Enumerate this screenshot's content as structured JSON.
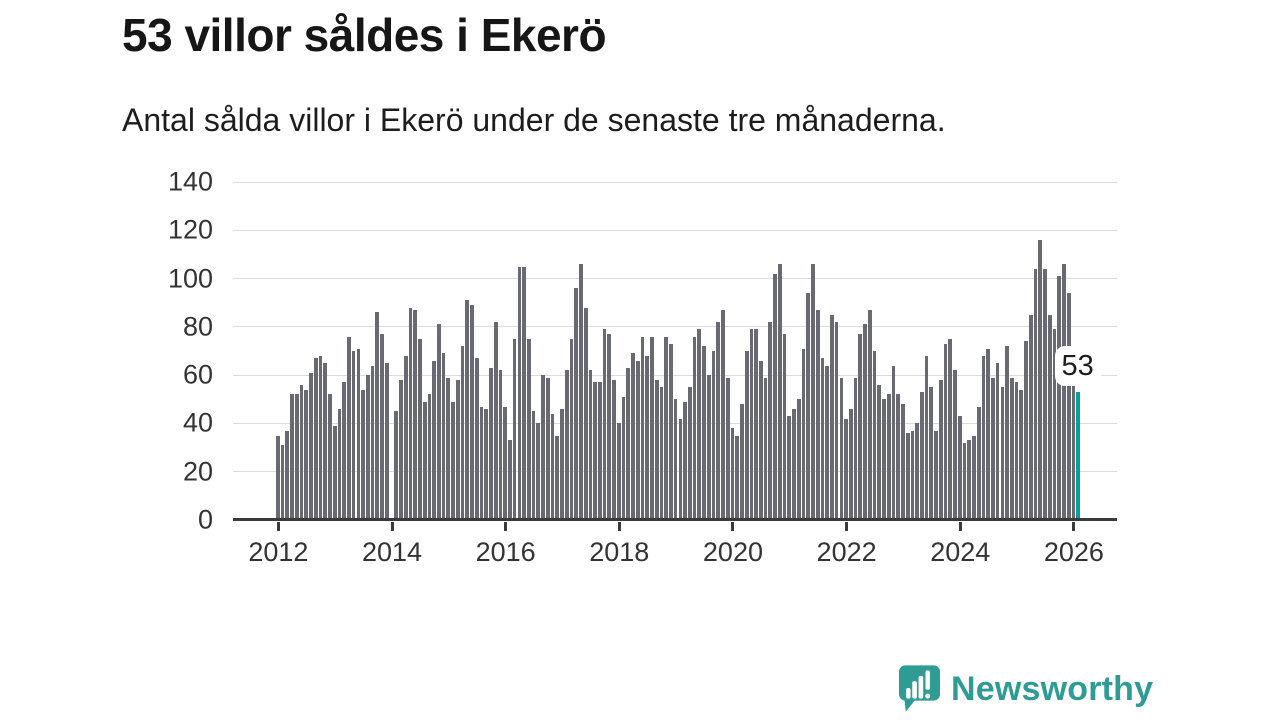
{
  "header": {
    "title": "53 villor såldes i Ekerö",
    "subtitle": "Antal sålda villor i Ekerö under de senaste tre månaderna."
  },
  "chart_data": {
    "type": "bar",
    "title": "53 villor såldes i Ekerö",
    "subtitle": "Antal sålda villor i Ekerö under de senaste tre månaderna.",
    "frequency": "monthly",
    "start_period": "2012-01",
    "values": [
      35,
      31,
      37,
      52,
      52,
      56,
      54,
      61,
      67,
      68,
      65,
      52,
      39,
      46,
      57,
      76,
      70,
      71,
      54,
      60,
      64,
      86,
      77,
      65,
      0,
      45,
      58,
      68,
      88,
      87,
      75,
      49,
      52,
      66,
      81,
      69,
      59,
      49,
      58,
      72,
      91,
      89,
      67,
      47,
      46,
      63,
      82,
      62,
      47,
      33,
      75,
      105,
      105,
      75,
      45,
      40,
      60,
      59,
      44,
      35,
      46,
      62,
      75,
      96,
      106,
      88,
      62,
      57,
      57,
      79,
      77,
      58,
      40,
      51,
      63,
      69,
      66,
      76,
      68,
      76,
      58,
      55,
      76,
      73,
      50,
      42,
      49,
      55,
      76,
      79,
      72,
      60,
      70,
      82,
      87,
      59,
      38,
      35,
      48,
      70,
      79,
      79,
      66,
      59,
      82,
      102,
      106,
      77,
      43,
      46,
      50,
      71,
      94,
      106,
      87,
      67,
      64,
      85,
      82,
      59,
      42,
      46,
      59,
      77,
      81,
      87,
      70,
      56,
      50,
      52,
      64,
      52,
      48,
      36,
      37,
      40,
      53,
      68,
      55,
      37,
      58,
      73,
      75,
      62,
      43,
      32,
      33,
      35,
      47,
      68,
      71,
      59,
      65,
      55,
      72,
      59,
      57,
      54,
      74,
      85,
      104,
      116,
      104,
      85,
      79,
      101,
      106,
      94,
      62,
      53
    ],
    "highlight": {
      "index": 169,
      "label": "53",
      "color": "#00a29b"
    },
    "bar_color": "#696974",
    "grid_color": "#dbdbdb",
    "axis_color": "#3a3a3a",
    "y_ticks": [
      0,
      20,
      40,
      60,
      80,
      100,
      120,
      140
    ],
    "ylim": [
      0,
      140
    ],
    "x_ticks": [
      {
        "label": "2012",
        "index": 0
      },
      {
        "label": "2014",
        "index": 24
      },
      {
        "label": "2016",
        "index": 48
      },
      {
        "label": "2018",
        "index": 72
      },
      {
        "label": "2020",
        "index": 96
      },
      {
        "label": "2022",
        "index": 120
      },
      {
        "label": "2024",
        "index": 144
      },
      {
        "label": "2026",
        "index": 168
      }
    ],
    "grid": true,
    "legend": "none"
  },
  "footer": {
    "brand": "Newsworthy",
    "brand_color": "#2e9c94"
  }
}
